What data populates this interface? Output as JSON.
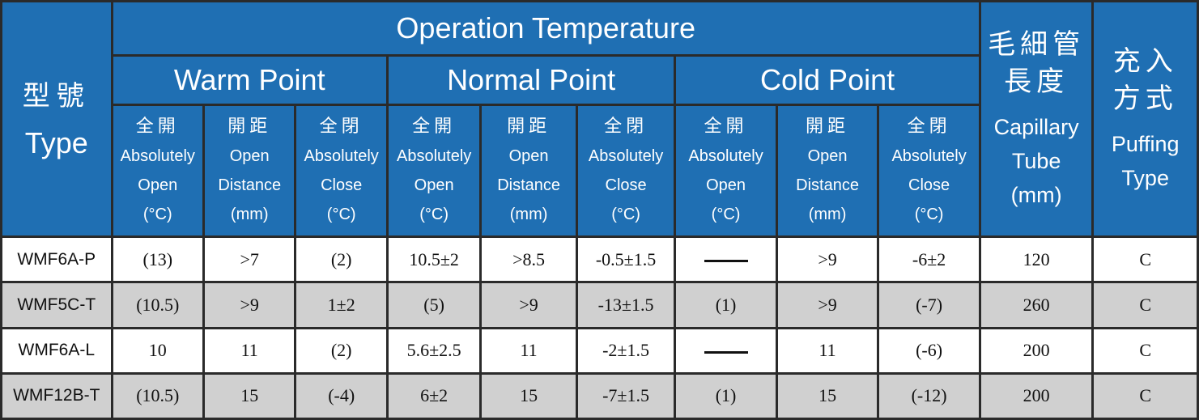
{
  "header": {
    "type_zh": "型號",
    "type_en": "Type",
    "operation_title": "Operation Temperature",
    "groups": [
      "Warm Point",
      "Normal Point",
      "Cold Point"
    ],
    "sub_columns": [
      {
        "zh": "全開",
        "en1": "Absolutely",
        "en2": "Open",
        "unit": "(°C)"
      },
      {
        "zh": "開距",
        "en1": "Open",
        "en2": "Distance",
        "unit": "(mm)"
      },
      {
        "zh": "全閉",
        "en1": "Absolutely",
        "en2": "Close",
        "unit": "(°C)"
      },
      {
        "zh": "全開",
        "en1": "Absolutely",
        "en2": "Open",
        "unit": "(°C)"
      },
      {
        "zh": "開距",
        "en1": "Open",
        "en2": "Distance",
        "unit": "(mm)"
      },
      {
        "zh": "全閉",
        "en1": "Absolutely",
        "en2": "Close",
        "unit": "(°C)"
      },
      {
        "zh": "全開",
        "en1": "Absolutely",
        "en2": "Open",
        "unit": "(°C)"
      },
      {
        "zh": "開距",
        "en1": "Open",
        "en2": "Distance",
        "unit": "(mm)"
      },
      {
        "zh": "全閉",
        "en1": "Absolutely",
        "en2": "Close",
        "unit": "(°C)"
      }
    ],
    "capillary_zh1": "毛細管",
    "capillary_zh2": "長度",
    "capillary_en1": "Capillary",
    "capillary_en2": "Tube",
    "capillary_unit": "(mm)",
    "puffing_zh1": "充入",
    "puffing_zh2": "方式",
    "puffing_en1": "Puffing",
    "puffing_en2": "Type"
  },
  "rows": [
    {
      "model": "WMF6A-P",
      "cells": [
        "(13)",
        ">7",
        "(2)",
        "10.5±2",
        ">8.5",
        "-0.5±1.5",
        "—",
        ">9",
        "-6±2",
        "120",
        "C"
      ]
    },
    {
      "model": "WMF5C-T",
      "cells": [
        "(10.5)",
        ">9",
        "1±2",
        "(5)",
        ">9",
        "-13±1.5",
        "(1)",
        ">9",
        "(-7)",
        "260",
        "C"
      ]
    },
    {
      "model": "WMF6A-L",
      "cells": [
        "10",
        "11",
        "(2)",
        "5.6±2.5",
        "11",
        "-2±1.5",
        "—",
        "11",
        "(-6)",
        "200",
        "C"
      ]
    },
    {
      "model": "WMF12B-T",
      "cells": [
        "(10.5)",
        "15",
        "(-4)",
        "6±2",
        "15",
        "-7±1.5",
        "(1)",
        "15",
        "(-12)",
        "200",
        "C"
      ]
    }
  ],
  "colors": {
    "header_blue": "#1f6fb3",
    "row_gray": "#d0d0d0",
    "row_white": "#ffffff",
    "grid": "#2a2a2a"
  }
}
